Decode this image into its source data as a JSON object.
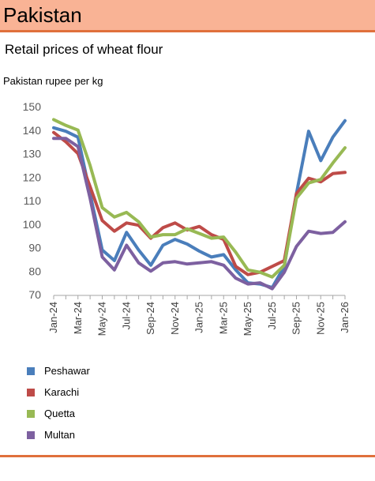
{
  "header": {
    "title": "Pakistan"
  },
  "chart_data": {
    "type": "line",
    "title": "Retail prices of wheat flour",
    "ylabel": "Pakistan rupee per kg",
    "xlabel": "",
    "ylim": [
      70,
      150
    ],
    "yticks": [
      70,
      80,
      90,
      100,
      110,
      120,
      130,
      140,
      150
    ],
    "grid": false,
    "legend_position": "bottom-left",
    "x": [
      "Jan-24",
      "Feb-24",
      "Mar-24",
      "Apr-24",
      "May-24",
      "Jun-24",
      "Jul-24",
      "Aug-24",
      "Sep-24",
      "Oct-24",
      "Nov-24",
      "Dec-24",
      "Jan-25",
      "Feb-25",
      "Mar-25",
      "Apr-25",
      "May-25",
      "Jun-25",
      "Jul-25",
      "Aug-25",
      "Sep-25",
      "Oct-25",
      "Nov-25",
      "Dec-25",
      "Jan-26"
    ],
    "xtick_labels": [
      "Jan-24",
      "Mar-24",
      "May-24",
      "Jul-24",
      "Sep-24",
      "Nov-24",
      "Jan-25",
      "Mar-25",
      "May-25",
      "Jul-25",
      "Sep-25",
      "Nov-25",
      "Jan-26"
    ],
    "series": [
      {
        "name": "Peshawar",
        "color": "#4a7ebb",
        "values": [
          141,
          139.5,
          137,
          113,
          89,
          84.5,
          96.5,
          89,
          82.5,
          91,
          93.5,
          91.5,
          88.5,
          86,
          87,
          80.5,
          75,
          74.5,
          73,
          82,
          113,
          139.5,
          127,
          137,
          144
        ]
      },
      {
        "name": "Karachi",
        "color": "#be4b48",
        "values": [
          139,
          135,
          130,
          116,
          101.5,
          97,
          100.5,
          99.5,
          94,
          98.5,
          100.5,
          97.5,
          99,
          95.5,
          93.5,
          82,
          78.5,
          79.5,
          82,
          84.5,
          113,
          119.5,
          118,
          121.5,
          122
        ]
      },
      {
        "name": "Quetta",
        "color": "#98b954",
        "values": [
          144.5,
          142,
          140,
          125,
          107,
          103,
          105,
          101,
          94.5,
          95.5,
          95.5,
          98,
          96,
          94,
          94.5,
          88,
          80.5,
          79.5,
          77.5,
          82.5,
          111,
          117.5,
          119,
          126,
          132.5
        ]
      },
      {
        "name": "Multan",
        "color": "#7d60a0",
        "values": [
          136.5,
          136.5,
          133,
          111,
          86,
          80.5,
          91,
          83.5,
          80,
          83.5,
          84,
          83,
          83.5,
          84,
          82.5,
          77,
          74.5,
          75,
          72.5,
          79.5,
          90.5,
          97,
          96,
          96.5,
          101
        ]
      }
    ]
  }
}
